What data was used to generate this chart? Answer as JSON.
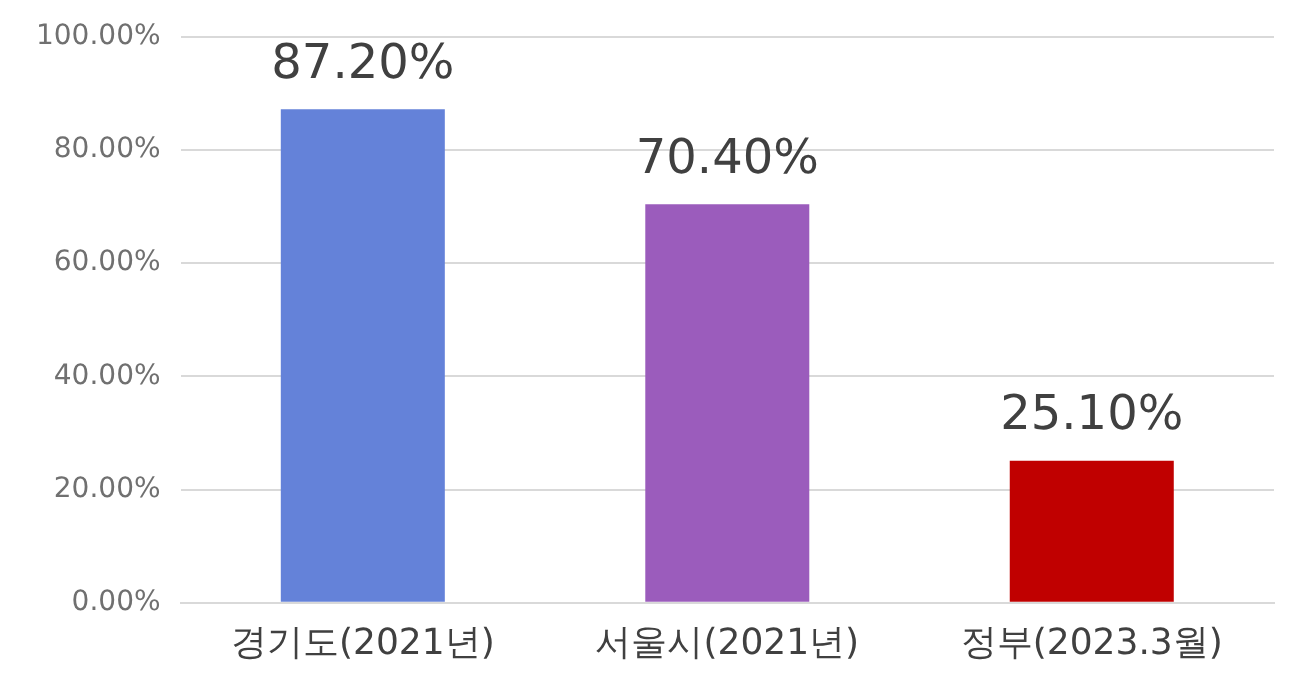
{
  "chart_data": {
    "type": "bar",
    "categories": [
      "경기도(2021년)",
      "서울시(2021년)",
      "정부(2023.3월)"
    ],
    "values": [
      87.2,
      70.4,
      25.1
    ],
    "colors": [
      "#6482d9",
      "#9b5cbc",
      "#c00000"
    ],
    "value_labels": [
      "87.20%",
      "70.40%",
      "25.10%"
    ],
    "ylim": [
      0,
      100
    ],
    "yticks": [
      {
        "value": 0,
        "label": "0.00%"
      },
      {
        "value": 20,
        "label": "20.00%"
      },
      {
        "value": 40,
        "label": "40.00%"
      },
      {
        "value": 60,
        "label": "60.00%"
      },
      {
        "value": 80,
        "label": "80.00%"
      },
      {
        "value": 100,
        "label": "100.00%"
      }
    ],
    "grid": "y",
    "legend": false
  }
}
